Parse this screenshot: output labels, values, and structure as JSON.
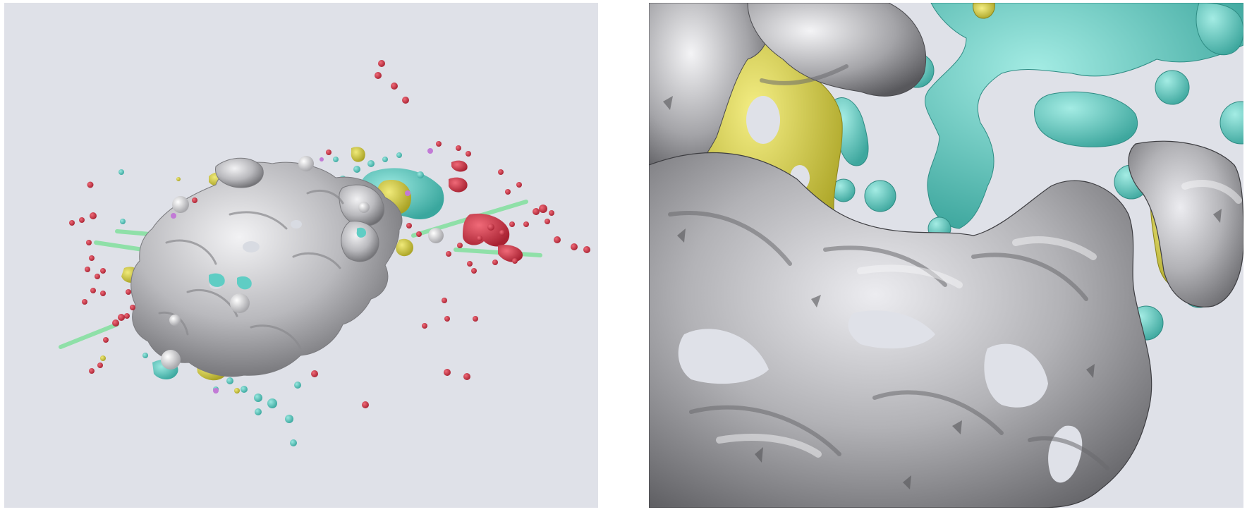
{
  "panels": [
    {
      "id": "left",
      "view": "overview"
    },
    {
      "id": "right",
      "view": "close-up"
    }
  ],
  "palette": {
    "background": "#dfe1e8",
    "surface_gray": "#b8b8bc",
    "surface_gray_light": "#e6e6ea",
    "surface_gray_dark": "#6e6e72",
    "yellow": "#d9d23a",
    "cyan": "#5fcdc4",
    "red": "#d63a4a",
    "mint": "#8fe0a8",
    "violet": "#c27ad6"
  }
}
